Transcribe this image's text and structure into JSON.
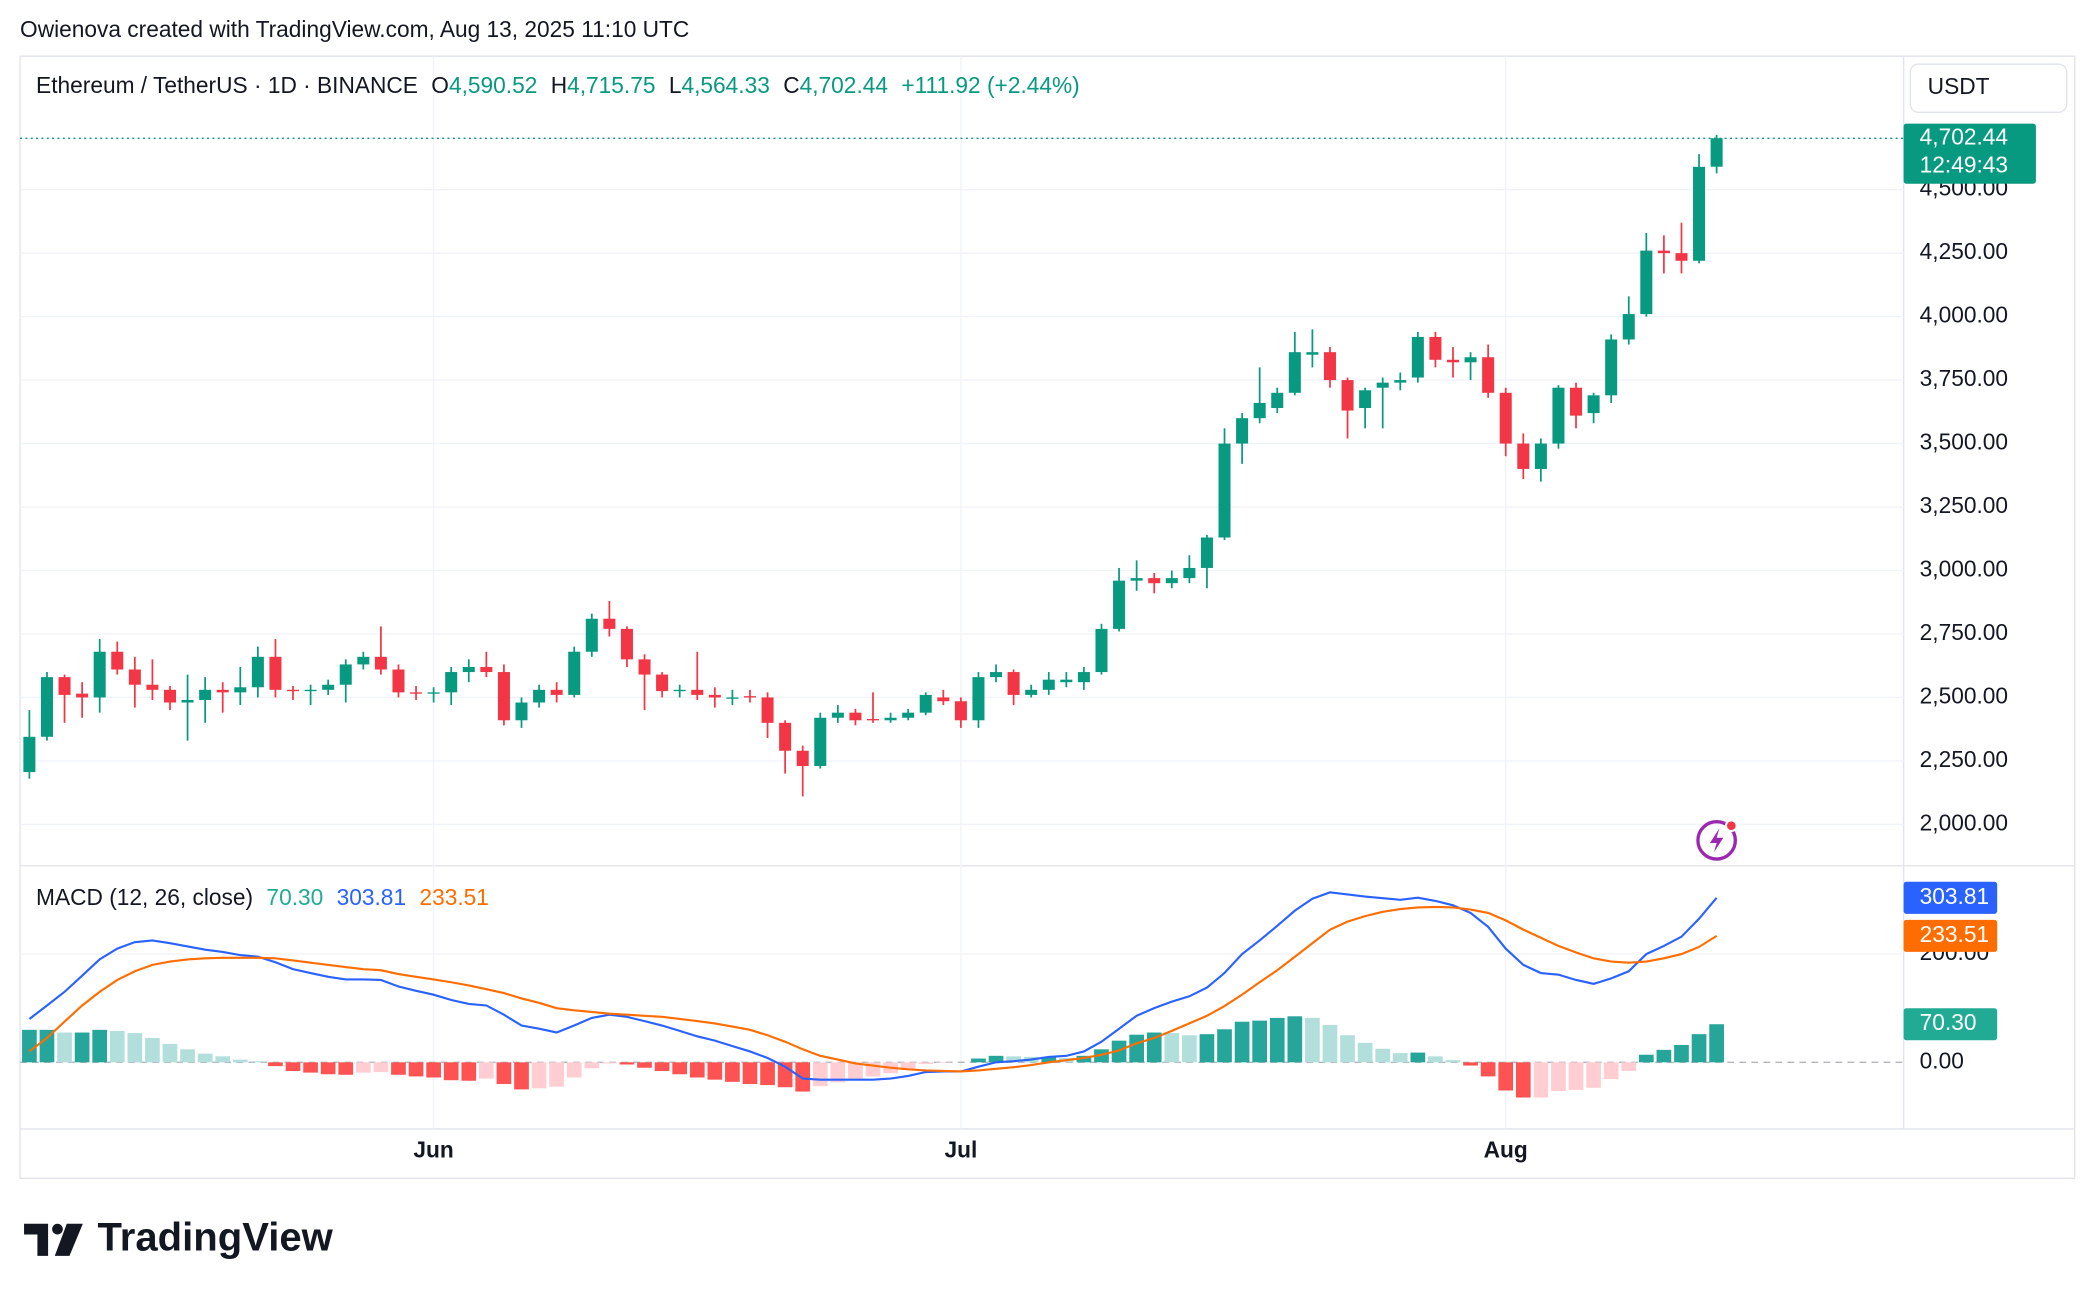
{
  "header": {
    "credit": "Owienova created with TradingView.com, Aug 13, 2025 11:10 UTC"
  },
  "footer": {
    "logo": "TradingView"
  },
  "chart_data": [
    {
      "type": "candlestick",
      "title": "Ethereum / TetherUS · 1D · BINANCE",
      "ohlc_legend": [
        {
          "key": "O",
          "label": "4,590.52"
        },
        {
          "key": "H",
          "label": "4,715.75"
        },
        {
          "key": "L",
          "label": "4,564.33"
        },
        {
          "key": "C",
          "label": "4,702.44"
        }
      ],
      "change_label": "+111.92 (+2.44%)",
      "currency": "USDT",
      "last_price_label": "4,702.44",
      "countdown": "12:49:43",
      "up_color": "#089981",
      "down_color": "#f23645",
      "grid": true,
      "categories": [
        null,
        null,
        null,
        null,
        null,
        null,
        null,
        null,
        null,
        null,
        null,
        null,
        null,
        null,
        null,
        null,
        null,
        null,
        null,
        null,
        null,
        null,
        null,
        "Jun",
        null,
        null,
        null,
        null,
        null,
        null,
        null,
        null,
        null,
        null,
        null,
        null,
        null,
        null,
        null,
        null,
        null,
        null,
        null,
        null,
        null,
        null,
        null,
        null,
        null,
        null,
        null,
        null,
        null,
        "Jul",
        null,
        null,
        null,
        null,
        null,
        null,
        null,
        null,
        null,
        null,
        null,
        null,
        null,
        null,
        null,
        null,
        null,
        null,
        null,
        null,
        null,
        null,
        null,
        null,
        null,
        null,
        null,
        null,
        null,
        null,
        "Aug",
        null,
        null,
        null,
        null,
        null,
        null,
        null,
        null,
        null,
        null,
        null,
        null
      ],
      "open": [
        2206,
        2345,
        2580,
        2515,
        2500,
        2680,
        2610,
        2550,
        2530,
        2480,
        2490,
        2530,
        2520,
        2540,
        2660,
        2530,
        2525,
        2530,
        2550,
        2630,
        2660,
        2610,
        2520,
        2515,
        2520,
        2600,
        2620,
        2600,
        2410,
        2480,
        2530,
        2510,
        2680,
        2810,
        2770,
        2650,
        2590,
        2525,
        2530,
        2510,
        2495,
        2505,
        2500,
        2400,
        2290,
        2230,
        2420,
        2440,
        2415,
        2410,
        2420,
        2440,
        2500,
        2485,
        2410,
        2580,
        2600,
        2510,
        2530,
        2560,
        2560,
        2600,
        2770,
        2960,
        2970,
        2950,
        2970,
        3010,
        3130,
        3500,
        3600,
        3640,
        3700,
        3850,
        3860,
        3750,
        3640,
        3720,
        3740,
        3760,
        3920,
        3830,
        3820,
        3840,
        3700,
        3500,
        3400,
        3500,
        3720,
        3620,
        3690,
        3910,
        4010,
        4260,
        4250,
        4220,
        4590.52
      ],
      "high": [
        2450,
        2600,
        2590,
        2560,
        2730,
        2720,
        2660,
        2650,
        2545,
        2590,
        2580,
        2560,
        2620,
        2700,
        2730,
        2545,
        2550,
        2570,
        2650,
        2680,
        2780,
        2630,
        2545,
        2540,
        2620,
        2650,
        2680,
        2630,
        2500,
        2550,
        2560,
        2700,
        2830,
        2880,
        2780,
        2670,
        2600,
        2550,
        2680,
        2540,
        2530,
        2530,
        2520,
        2410,
        2310,
        2440,
        2470,
        2455,
        2520,
        2440,
        2455,
        2520,
        2530,
        2500,
        2600,
        2630,
        2610,
        2550,
        2600,
        2600,
        2620,
        2790,
        3010,
        3040,
        2990,
        3000,
        3060,
        3140,
        3560,
        3620,
        3800,
        3720,
        3940,
        3950,
        3880,
        3760,
        3720,
        3760,
        3780,
        3940,
        3940,
        3880,
        3860,
        3890,
        3720,
        3540,
        3520,
        3730,
        3740,
        3700,
        3930,
        4080,
        4330,
        4320,
        4370,
        4640,
        4715.75
      ],
      "low": [
        2180,
        2330,
        2400,
        2420,
        2440,
        2590,
        2460,
        2490,
        2450,
        2330,
        2400,
        2440,
        2470,
        2500,
        2500,
        2490,
        2470,
        2510,
        2480,
        2610,
        2590,
        2500,
        2490,
        2480,
        2470,
        2560,
        2580,
        2390,
        2380,
        2460,
        2480,
        2500,
        2660,
        2740,
        2620,
        2450,
        2500,
        2500,
        2490,
        2460,
        2470,
        2480,
        2340,
        2200,
        2110,
        2220,
        2400,
        2390,
        2400,
        2400,
        2410,
        2430,
        2470,
        2380,
        2380,
        2560,
        2470,
        2500,
        2510,
        2540,
        2530,
        2590,
        2760,
        2920,
        2910,
        2930,
        2950,
        2930,
        3120,
        3420,
        3580,
        3620,
        3690,
        3800,
        3720,
        3520,
        3560,
        3560,
        3710,
        3740,
        3800,
        3760,
        3750,
        3680,
        3450,
        3360,
        3350,
        3480,
        3560,
        3580,
        3660,
        3890,
        4000,
        4170,
        4170,
        4210,
        4564.33
      ],
      "close": [
        2345,
        2580,
        2510,
        2500,
        2680,
        2610,
        2550,
        2530,
        2480,
        2490,
        2530,
        2520,
        2540,
        2660,
        2530,
        2525,
        2530,
        2550,
        2630,
        2660,
        2610,
        2520,
        2515,
        2520,
        2600,
        2620,
        2600,
        2410,
        2480,
        2530,
        2510,
        2680,
        2810,
        2770,
        2650,
        2590,
        2525,
        2530,
        2510,
        2500,
        2500,
        2500,
        2400,
        2290,
        2230,
        2420,
        2440,
        2410,
        2410,
        2420,
        2440,
        2510,
        2485,
        2410,
        2580,
        2600,
        2510,
        2530,
        2570,
        2570,
        2600,
        2770,
        2960,
        2970,
        2950,
        2970,
        3010,
        3130,
        3500,
        3600,
        3660,
        3700,
        3860,
        3860,
        3750,
        3630,
        3710,
        3740,
        3750,
        3920,
        3830,
        3820,
        3840,
        3700,
        3500,
        3400,
        3500,
        3720,
        3610,
        3690,
        3910,
        4010,
        4260,
        4250,
        4220,
        4590,
        4702.44
      ],
      "ylim": [
        1837,
        5010
      ],
      "yticks": [
        {
          "value": 2000,
          "label": "2,000.00"
        },
        {
          "value": 2250,
          "label": "2,250.00"
        },
        {
          "value": 2500,
          "label": "2,500.00"
        },
        {
          "value": 2750,
          "label": "2,750.00"
        },
        {
          "value": 3000,
          "label": "3,000.00"
        },
        {
          "value": 3250,
          "label": "3,250.00"
        },
        {
          "value": 3500,
          "label": "3,500.00"
        },
        {
          "value": 3750,
          "label": "3,750.00"
        },
        {
          "value": 4000,
          "label": "4,000.00"
        },
        {
          "value": 4250,
          "label": "4,250.00"
        },
        {
          "value": 4500,
          "label": "4,500.00"
        }
      ]
    },
    {
      "type": "macd",
      "title": "MACD (12, 26, close)",
      "histogram_colors": {
        "grow_above": "#26a69a",
        "fall_above": "#b2dfdb",
        "grow_below": "#ffcdd2",
        "fall_below": "#ff5252"
      },
      "series": [
        {
          "kind": "histogram",
          "color": "#22ab94",
          "last_label": "70.30",
          "values": [
            60,
            60,
            55,
            55,
            60,
            58,
            54,
            45,
            34,
            24,
            16,
            11,
            5,
            2,
            -7,
            -16,
            -19,
            -22,
            -23,
            -19,
            -18,
            -23,
            -26,
            -28,
            -33,
            -34,
            -30,
            -40,
            -50,
            -48,
            -45,
            -28,
            -11,
            -2,
            -4,
            -10,
            -16,
            -22,
            -28,
            -32,
            -36,
            -40,
            -42,
            -46,
            -54,
            -44,
            -37,
            -30,
            -26,
            -20,
            -12,
            -3,
            -1,
            0,
            7,
            12,
            11,
            10,
            10,
            8,
            12,
            24,
            40,
            51,
            55,
            54,
            50,
            52,
            61,
            75,
            77,
            82,
            85,
            82,
            69,
            50,
            36,
            25,
            17,
            18,
            11,
            4,
            -6,
            -26,
            -52,
            -65,
            -65,
            -53,
            -51,
            -47,
            -31,
            -16,
            14,
            23,
            32,
            52,
            70.3
          ]
        },
        {
          "kind": "line",
          "color": "#2962ff",
          "last_label": "303.81",
          "values": [
            80,
            105,
            130,
            160,
            190,
            210,
            222,
            225,
            220,
            214,
            208,
            204,
            198,
            195,
            185,
            172,
            165,
            158,
            153,
            153,
            152,
            140,
            132,
            125,
            115,
            108,
            105,
            88,
            68,
            62,
            55,
            68,
            82,
            88,
            84,
            76,
            68,
            58,
            48,
            40,
            30,
            20,
            8,
            -8,
            -30,
            -32,
            -32,
            -32,
            -32,
            -30,
            -25,
            -18,
            -17,
            -17,
            -8,
            0,
            2,
            5,
            10,
            12,
            20,
            38,
            62,
            86,
            100,
            112,
            122,
            138,
            165,
            200,
            225,
            252,
            280,
            302,
            314,
            310,
            306,
            303,
            300,
            304,
            298,
            290,
            276,
            250,
            210,
            180,
            165,
            162,
            152,
            145,
            155,
            168,
            200,
            215,
            232,
            265,
            303.81
          ]
        },
        {
          "kind": "line",
          "color": "#ff6d00",
          "last_label": "233.51",
          "values": [
            20,
            45,
            75,
            105,
            130,
            152,
            168,
            180,
            186,
            190,
            192,
            193,
            193,
            193,
            192,
            188,
            184,
            180,
            176,
            172,
            170,
            163,
            158,
            153,
            148,
            142,
            135,
            128,
            118,
            110,
            100,
            96,
            93,
            90,
            88,
            86,
            84,
            80,
            76,
            72,
            66,
            60,
            50,
            38,
            24,
            12,
            5,
            -2,
            -6,
            -10,
            -13,
            -15,
            -16,
            -17,
            -15,
            -12,
            -9,
            -5,
            0,
            4,
            8,
            14,
            22,
            35,
            45,
            58,
            72,
            86,
            104,
            125,
            148,
            170,
            195,
            220,
            245,
            260,
            270,
            278,
            283,
            286,
            287,
            286,
            282,
            276,
            262,
            245,
            230,
            215,
            203,
            192,
            186,
            184,
            186,
            192,
            200,
            213,
            233.51
          ]
        }
      ],
      "ylim": [
        -123,
        363
      ],
      "yticks": [
        {
          "value": 0,
          "label": "0.00"
        },
        {
          "value": 200,
          "label": "200.00"
        }
      ]
    }
  ]
}
